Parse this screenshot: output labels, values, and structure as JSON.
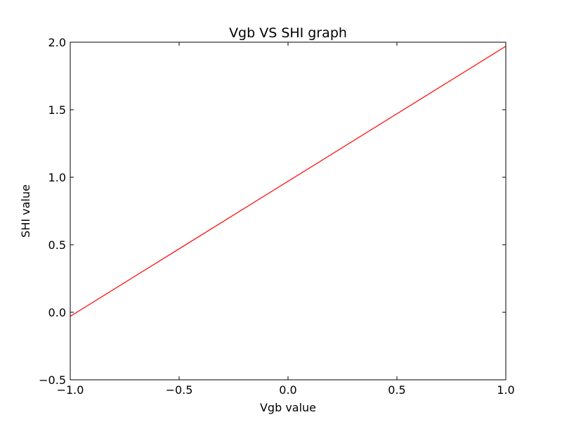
{
  "chart_data": {
    "type": "line",
    "title": "Vgb VS SHI graph",
    "xlabel": "Vgb value",
    "ylabel": "SHI value",
    "xlim": [
      -1.0,
      1.0
    ],
    "ylim": [
      -0.5,
      2.0
    ],
    "grid": false,
    "xticks": [
      -1.0,
      -0.5,
      0.0,
      0.5,
      1.0
    ],
    "xtick_labels": [
      "−1.0",
      "−0.5",
      "0.0",
      "0.5",
      "1.0"
    ],
    "yticks": [
      -0.5,
      0.0,
      0.5,
      1.0,
      1.5,
      2.0
    ],
    "ytick_labels": [
      "−0.5",
      "0.0",
      "0.5",
      "1.0",
      "1.5",
      "2.0"
    ],
    "series": [
      {
        "color": "#ff0000",
        "x": [
          -1.0,
          1.0
        ],
        "y": [
          -0.03,
          1.97
        ]
      }
    ]
  }
}
